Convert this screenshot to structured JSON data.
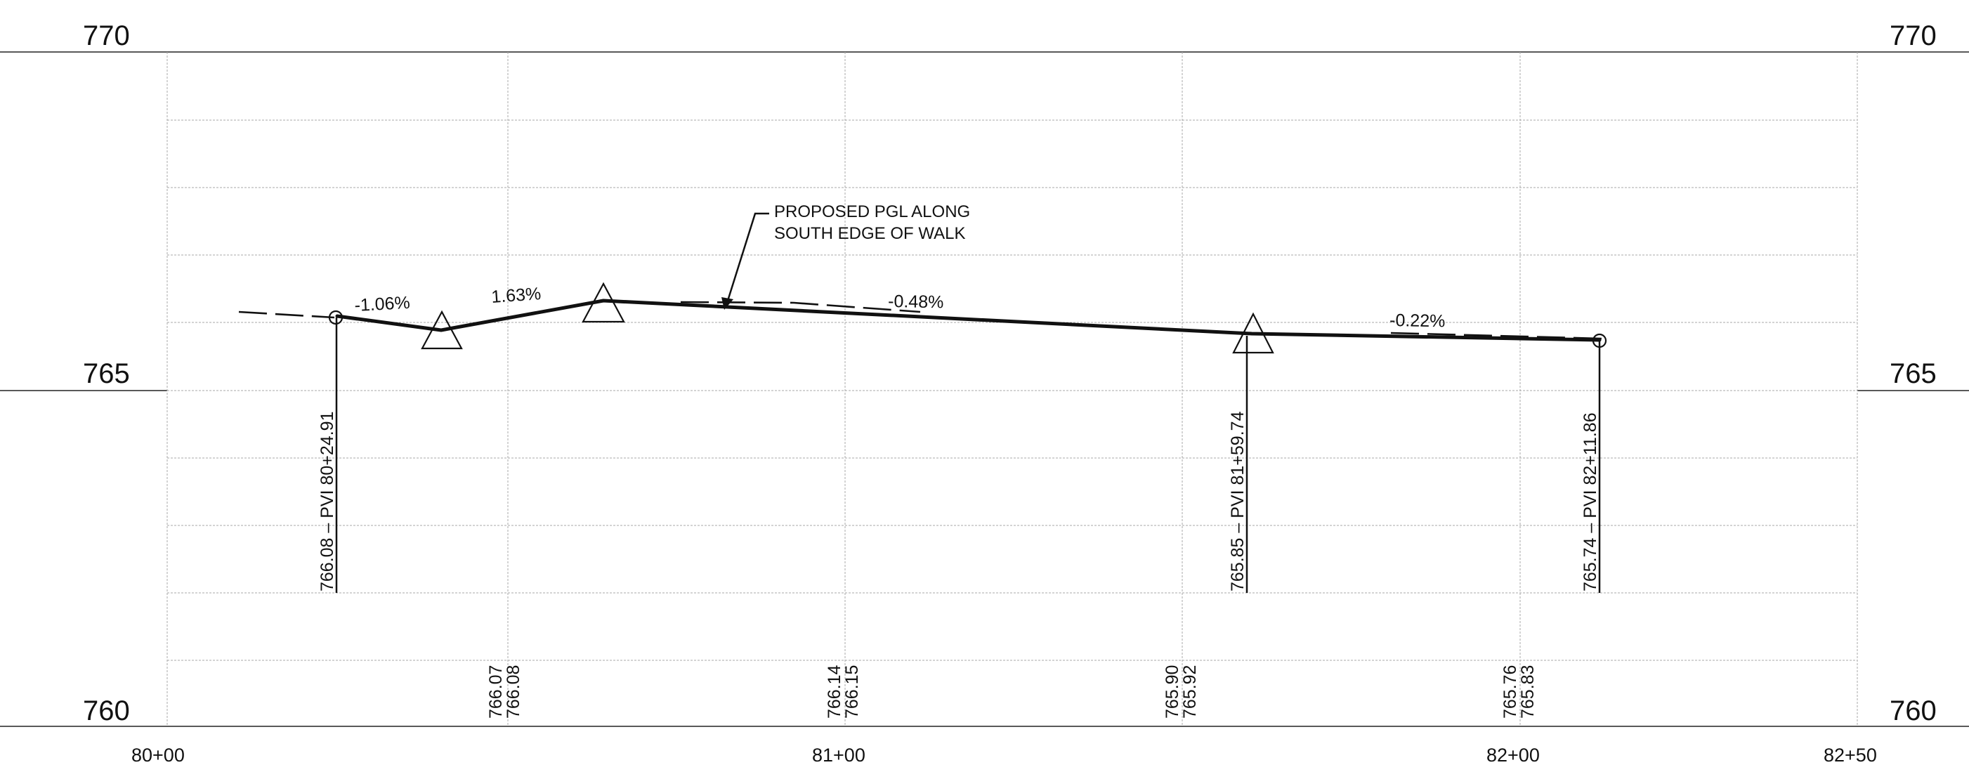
{
  "elevations": {
    "top": "770",
    "mid": "765",
    "bottom": "760"
  },
  "stations": [
    "80+00",
    "81+00",
    "82+00",
    "82+50"
  ],
  "grades": [
    "-1.06%",
    "1.63%",
    "-0.48%",
    "-0.22%"
  ],
  "pvi_labels": [
    "766.08 – PVI 80+24.91",
    "765.85 – PVI 81+59.74",
    "765.74 – PVI 82+11.86"
  ],
  "bottom_values": [
    [
      "766.07",
      "766.08"
    ],
    [
      "766.14",
      "766.15"
    ],
    [
      "765.90",
      "765.92"
    ],
    [
      "765.76",
      "765.83"
    ]
  ],
  "note": {
    "line1": "PROPOSED PGL ALONG",
    "line2": "SOUTH EDGE OF WALK"
  }
}
